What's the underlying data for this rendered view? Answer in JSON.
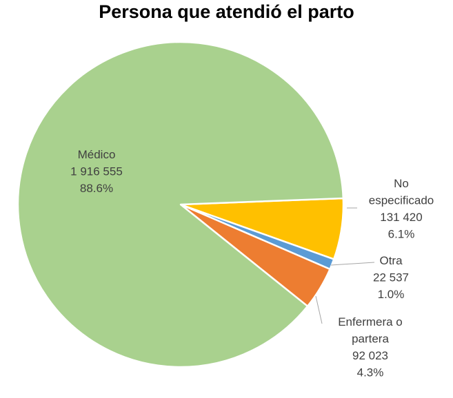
{
  "chart_data": {
    "type": "pie",
    "title": "Persona que atendió el parto",
    "slices": [
      {
        "name": "No especificado",
        "label_lines": [
          "No",
          "especificado"
        ],
        "value_text": "131 420",
        "value": 131420,
        "percent_text": "6.1%",
        "color": "#FFC000"
      },
      {
        "name": "Otra",
        "label_lines": [
          "Otra"
        ],
        "value_text": "22 537",
        "value": 22537,
        "percent_text": "1.0%",
        "color": "#5B9BD5"
      },
      {
        "name": "Enfermera o partera",
        "label_lines": [
          "Enfermera o",
          "partera"
        ],
        "value_text": "92 023",
        "value": 92023,
        "percent_text": "4.3%",
        "color": "#ED7D31"
      },
      {
        "name": "Médico",
        "label_lines": [
          "Médico"
        ],
        "value_text": "1 916 555",
        "value": 1916555,
        "percent_text": "88.6%",
        "color": "#A9D18E"
      }
    ],
    "start_angle_deg": -2.2,
    "direction": "clockwise"
  }
}
